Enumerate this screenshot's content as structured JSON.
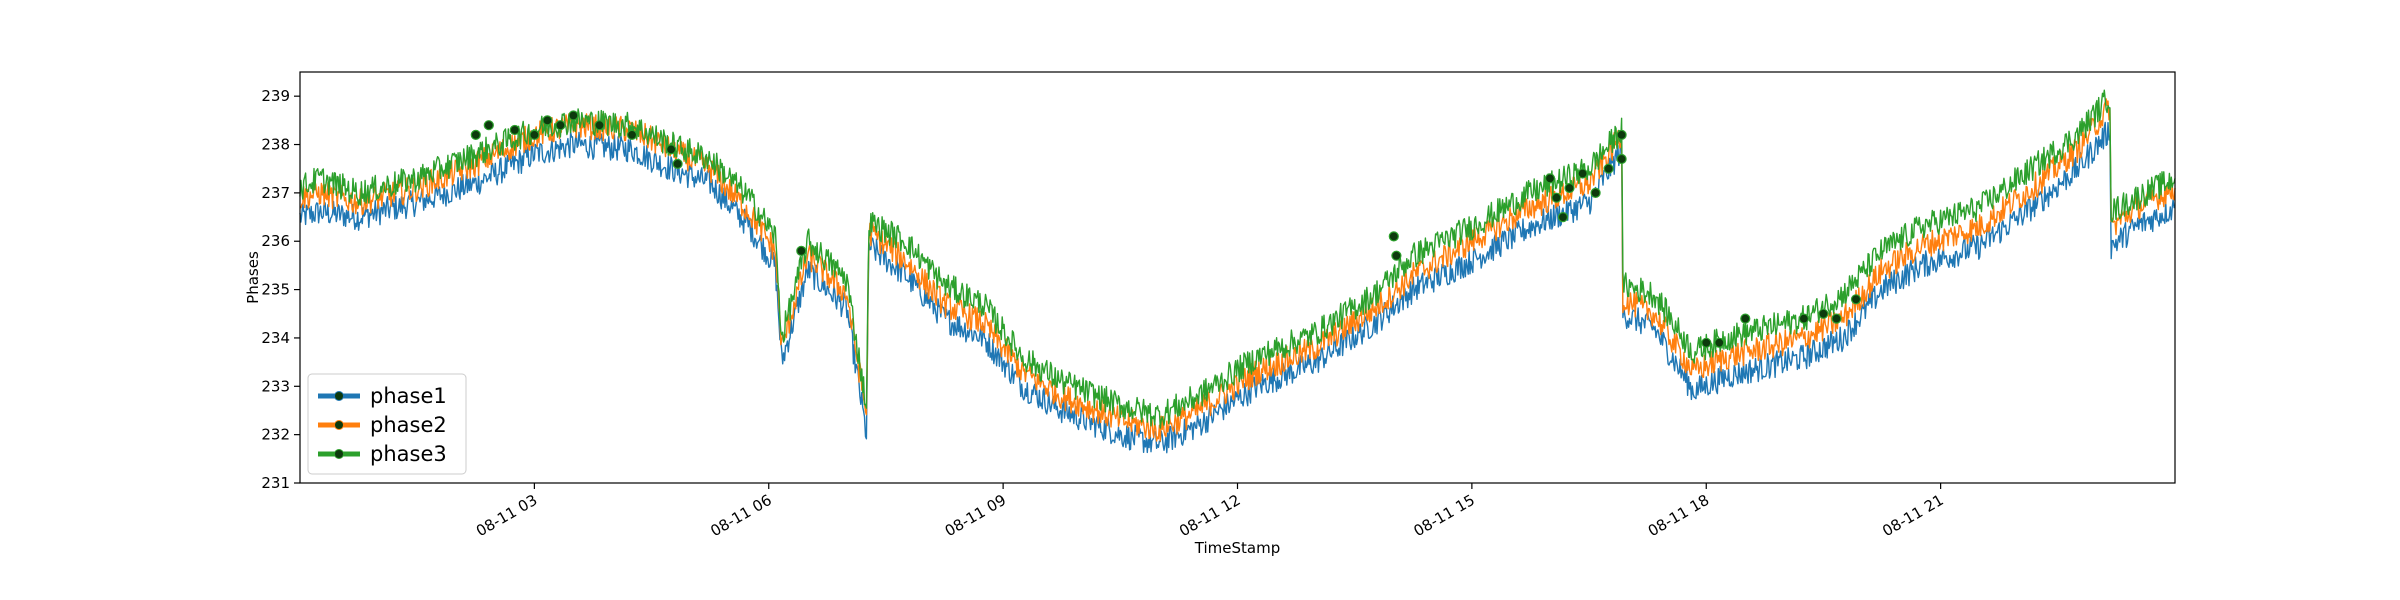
{
  "chart_data": {
    "type": "line",
    "title": "",
    "xlabel": "TimeStamp",
    "ylabel": "Phases",
    "x_range": [
      "2023-08-11 00:00",
      "2023-08-11 24:00"
    ],
    "ylim": [
      231,
      239.5
    ],
    "y_ticks": [
      231,
      232,
      233,
      234,
      235,
      236,
      237,
      238,
      239
    ],
    "x_ticks": [
      {
        "value": "2023-08-11 03:00",
        "label": "08-11 03"
      },
      {
        "value": "2023-08-11 06:00",
        "label": "08-11 06"
      },
      {
        "value": "2023-08-11 09:00",
        "label": "08-11 09"
      },
      {
        "value": "2023-08-11 12:00",
        "label": "08-11 12"
      },
      {
        "value": "2023-08-11 15:00",
        "label": "08-11 15"
      },
      {
        "value": "2023-08-11 18:00",
        "label": "08-11 18"
      },
      {
        "value": "2023-08-11 21:00",
        "label": "08-11 21"
      }
    ],
    "grid": false,
    "legend_position": "bottom-left",
    "series": [
      {
        "name": "phase1",
        "color": "#1f77b4",
        "x": [
          "2023-08-11 00:00",
          "2023-08-11 00:15",
          "2023-08-11 00:45",
          "2023-08-11 01:30",
          "2023-08-11 02:15",
          "2023-08-11 03:00",
          "2023-08-11 03:30",
          "2023-08-11 04:15",
          "2023-08-11 04:45",
          "2023-08-11 05:15",
          "2023-08-11 05:45",
          "2023-08-11 06:05",
          "2023-08-11 06:10",
          "2023-08-11 06:30",
          "2023-08-11 07:00",
          "2023-08-11 07:15",
          "2023-08-11 07:17",
          "2023-08-11 07:45",
          "2023-08-11 08:15",
          "2023-08-11 08:45",
          "2023-08-11 09:15",
          "2023-08-11 09:45",
          "2023-08-11 10:30",
          "2023-08-11 11:00",
          "2023-08-11 11:30",
          "2023-08-11 12:15",
          "2023-08-11 13:00",
          "2023-08-11 13:45",
          "2023-08-11 14:15",
          "2023-08-11 15:00",
          "2023-08-11 15:45",
          "2023-08-11 16:30",
          "2023-08-11 16:55",
          "2023-08-11 16:56",
          "2023-08-11 17:20",
          "2023-08-11 17:50",
          "2023-08-11 18:15",
          "2023-08-11 18:45",
          "2023-08-11 19:15",
          "2023-08-11 19:45",
          "2023-08-11 20:15",
          "2023-08-11 20:45",
          "2023-08-11 21:30",
          "2023-08-11 22:15",
          "2023-08-11 22:45",
          "2023-08-11 23:10",
          "2023-08-11 23:11",
          "2023-08-11 23:30",
          "2023-08-11 24:00"
        ],
        "values": [
          236.5,
          236.6,
          236.5,
          236.8,
          237.2,
          237.8,
          238.0,
          237.9,
          237.5,
          237.2,
          236.3,
          235.5,
          233.5,
          235.4,
          234.6,
          232.0,
          235.9,
          235.3,
          234.4,
          234.0,
          233.0,
          232.5,
          232.0,
          231.8,
          232.2,
          233.0,
          233.5,
          234.3,
          235.0,
          235.6,
          236.3,
          236.8,
          237.9,
          234.5,
          234.2,
          232.9,
          233.2,
          233.4,
          233.6,
          234.0,
          235.0,
          235.5,
          235.9,
          236.8,
          237.5,
          238.3,
          235.9,
          236.3,
          236.7
        ]
      },
      {
        "name": "phase2",
        "color": "#ff7f0e",
        "x": [
          "2023-08-11 00:00",
          "2023-08-11 00:15",
          "2023-08-11 00:45",
          "2023-08-11 01:30",
          "2023-08-11 02:15",
          "2023-08-11 03:00",
          "2023-08-11 03:30",
          "2023-08-11 04:15",
          "2023-08-11 04:45",
          "2023-08-11 05:15",
          "2023-08-11 05:45",
          "2023-08-11 06:05",
          "2023-08-11 06:10",
          "2023-08-11 06:30",
          "2023-08-11 07:00",
          "2023-08-11 07:15",
          "2023-08-11 07:17",
          "2023-08-11 07:45",
          "2023-08-11 08:15",
          "2023-08-11 08:45",
          "2023-08-11 09:15",
          "2023-08-11 09:45",
          "2023-08-11 10:30",
          "2023-08-11 11:00",
          "2023-08-11 11:30",
          "2023-08-11 12:15",
          "2023-08-11 13:00",
          "2023-08-11 13:45",
          "2023-08-11 14:15",
          "2023-08-11 15:00",
          "2023-08-11 15:45",
          "2023-08-11 16:30",
          "2023-08-11 16:55",
          "2023-08-11 16:56",
          "2023-08-11 17:20",
          "2023-08-11 17:50",
          "2023-08-11 18:15",
          "2023-08-11 18:45",
          "2023-08-11 19:15",
          "2023-08-11 19:45",
          "2023-08-11 20:15",
          "2023-08-11 20:45",
          "2023-08-11 21:30",
          "2023-08-11 22:15",
          "2023-08-11 22:45",
          "2023-08-11 23:10",
          "2023-08-11 23:11",
          "2023-08-11 23:30",
          "2023-08-11 24:00"
        ],
        "values": [
          236.9,
          237.0,
          236.8,
          237.1,
          237.6,
          238.2,
          238.4,
          238.3,
          237.9,
          237.5,
          236.6,
          235.8,
          233.8,
          235.7,
          234.9,
          232.4,
          236.2,
          235.6,
          234.7,
          234.3,
          233.3,
          232.8,
          232.3,
          232.1,
          232.5,
          233.3,
          233.8,
          234.6,
          235.3,
          236.0,
          236.7,
          237.2,
          238.2,
          234.8,
          234.5,
          233.3,
          233.6,
          233.8,
          234.0,
          234.4,
          235.4,
          235.9,
          236.3,
          237.2,
          237.9,
          238.8,
          236.3,
          236.7,
          237.1
        ]
      },
      {
        "name": "phase3",
        "color": "#2ca02c",
        "x": [
          "2023-08-11 00:00",
          "2023-08-11 00:15",
          "2023-08-11 00:45",
          "2023-08-11 01:30",
          "2023-08-11 02:15",
          "2023-08-11 03:00",
          "2023-08-11 03:30",
          "2023-08-11 04:15",
          "2023-08-11 04:45",
          "2023-08-11 05:15",
          "2023-08-11 05:45",
          "2023-08-11 06:05",
          "2023-08-11 06:10",
          "2023-08-11 06:30",
          "2023-08-11 07:00",
          "2023-08-11 07:15",
          "2023-08-11 07:17",
          "2023-08-11 07:45",
          "2023-08-11 08:15",
          "2023-08-11 08:45",
          "2023-08-11 09:15",
          "2023-08-11 09:45",
          "2023-08-11 10:30",
          "2023-08-11 11:00",
          "2023-08-11 11:30",
          "2023-08-11 12:15",
          "2023-08-11 13:00",
          "2023-08-11 13:45",
          "2023-08-11 14:15",
          "2023-08-11 15:00",
          "2023-08-11 15:45",
          "2023-08-11 16:30",
          "2023-08-11 16:55",
          "2023-08-11 16:56",
          "2023-08-11 17:20",
          "2023-08-11 17:50",
          "2023-08-11 18:15",
          "2023-08-11 18:45",
          "2023-08-11 19:15",
          "2023-08-11 19:45",
          "2023-08-11 20:15",
          "2023-08-11 20:45",
          "2023-08-11 21:30",
          "2023-08-11 22:15",
          "2023-08-11 22:45",
          "2023-08-11 23:10",
          "2023-08-11 23:11",
          "2023-08-11 23:30",
          "2023-08-11 24:00"
        ],
        "values": [
          237.1,
          237.3,
          237.0,
          237.3,
          237.8,
          238.3,
          238.5,
          238.4,
          238.0,
          237.7,
          236.9,
          236.1,
          234.0,
          236.0,
          235.2,
          232.6,
          236.4,
          236.0,
          235.1,
          234.7,
          233.6,
          233.1,
          232.6,
          232.4,
          232.8,
          233.6,
          234.1,
          234.9,
          235.7,
          236.3,
          237.0,
          237.5,
          238.3,
          235.1,
          234.9,
          233.7,
          234.0,
          234.2,
          234.4,
          234.9,
          235.8,
          236.3,
          236.7,
          237.6,
          238.2,
          239.0,
          236.6,
          236.9,
          237.3
        ]
      }
    ],
    "markers": {
      "color": "#0d3a0d",
      "points": [
        {
          "x": "2023-08-11 02:15",
          "y": 238.2
        },
        {
          "x": "2023-08-11 02:25",
          "y": 238.4
        },
        {
          "x": "2023-08-11 02:45",
          "y": 238.3
        },
        {
          "x": "2023-08-11 03:00",
          "y": 238.2
        },
        {
          "x": "2023-08-11 03:10",
          "y": 238.5
        },
        {
          "x": "2023-08-11 03:20",
          "y": 238.4
        },
        {
          "x": "2023-08-11 03:30",
          "y": 238.6
        },
        {
          "x": "2023-08-11 03:50",
          "y": 238.4
        },
        {
          "x": "2023-08-11 04:15",
          "y": 238.2
        },
        {
          "x": "2023-08-11 04:45",
          "y": 237.9
        },
        {
          "x": "2023-08-11 04:50",
          "y": 237.6
        },
        {
          "x": "2023-08-11 06:25",
          "y": 235.8
        },
        {
          "x": "2023-08-11 14:00",
          "y": 236.1
        },
        {
          "x": "2023-08-11 14:02",
          "y": 235.7
        },
        {
          "x": "2023-08-11 16:00",
          "y": 237.3
        },
        {
          "x": "2023-08-11 16:05",
          "y": 236.9
        },
        {
          "x": "2023-08-11 16:10",
          "y": 236.5
        },
        {
          "x": "2023-08-11 16:15",
          "y": 237.1
        },
        {
          "x": "2023-08-11 16:25",
          "y": 237.4
        },
        {
          "x": "2023-08-11 16:35",
          "y": 237.0
        },
        {
          "x": "2023-08-11 16:45",
          "y": 237.5
        },
        {
          "x": "2023-08-11 16:55",
          "y": 238.2
        },
        {
          "x": "2023-08-11 16:55",
          "y": 237.7
        },
        {
          "x": "2023-08-11 18:00",
          "y": 233.9
        },
        {
          "x": "2023-08-11 18:10",
          "y": 233.9
        },
        {
          "x": "2023-08-11 18:30",
          "y": 234.4
        },
        {
          "x": "2023-08-11 19:15",
          "y": 234.4
        },
        {
          "x": "2023-08-11 19:30",
          "y": 234.5
        },
        {
          "x": "2023-08-11 19:40",
          "y": 234.4
        },
        {
          "x": "2023-08-11 19:55",
          "y": 234.8
        }
      ]
    }
  }
}
